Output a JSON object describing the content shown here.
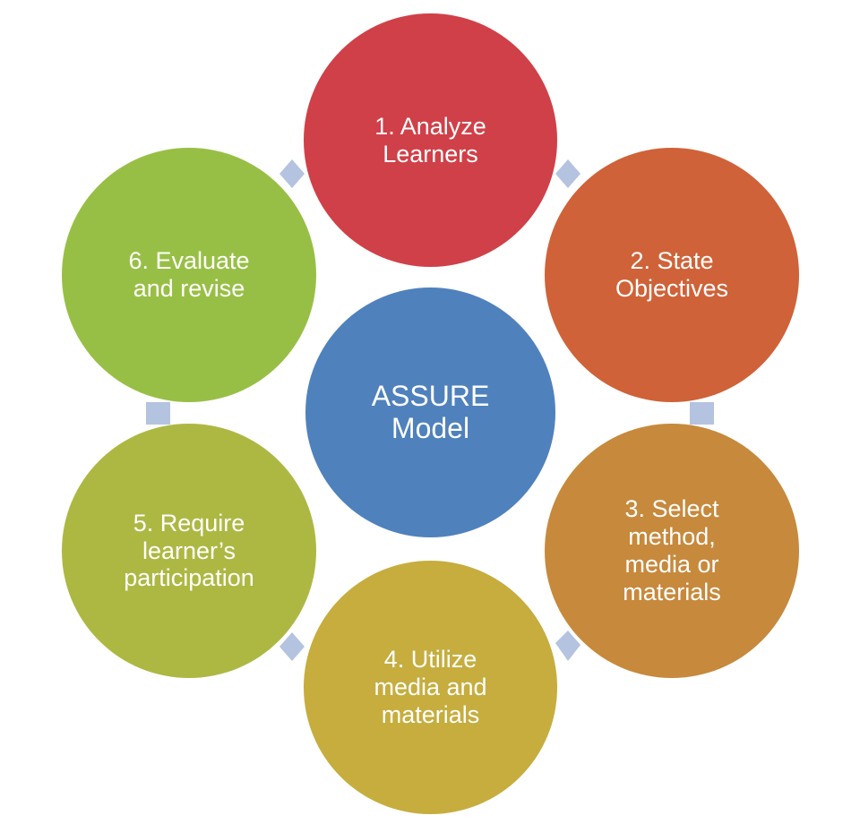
{
  "center": {
    "label": "ASSURE\nModel",
    "color": "#4f81bd"
  },
  "steps": [
    {
      "label": "1. Analyze\nLearners",
      "color": "#d04048"
    },
    {
      "label": "2. State\nObjectives",
      "color": "#cf6238"
    },
    {
      "label": "3. Select\nmethod,\nmedia or\nmaterials",
      "color": "#c7893c"
    },
    {
      "label": "4. Utilize\nmedia and\nmaterials",
      "color": "#c6ad3e"
    },
    {
      "label": "5. Require\nlearner’s\nparticipation",
      "color": "#adb843"
    },
    {
      "label": "6. Evaluate\nand revise",
      "color": "#98bf45"
    }
  ],
  "connector_color": "#b4c3df"
}
